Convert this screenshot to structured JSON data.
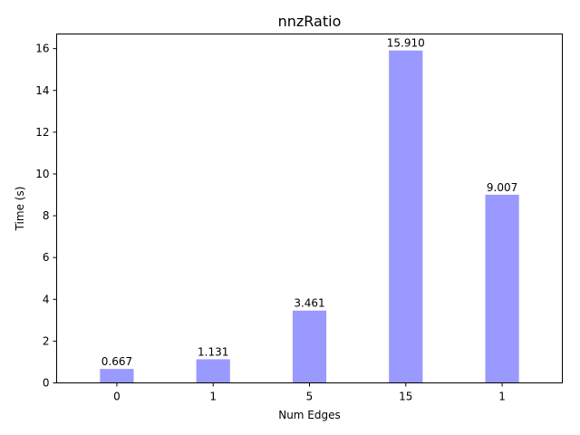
{
  "chart_data": {
    "type": "bar",
    "title": "nnzRatio",
    "xlabel": "Num Edges",
    "ylabel": "Time (s)",
    "categories": [
      "0",
      "1",
      "5",
      "15",
      "1"
    ],
    "values": [
      0.667,
      1.131,
      3.461,
      15.91,
      9.007
    ],
    "data_labels": [
      "0.667",
      "1.131",
      "3.461",
      "15.910",
      "9.007"
    ],
    "ylim": [
      0,
      16.7
    ],
    "yticks": [
      0,
      2,
      4,
      6,
      8,
      10,
      12,
      14,
      16
    ],
    "grid": false,
    "bar_color": "#9999ff"
  }
}
